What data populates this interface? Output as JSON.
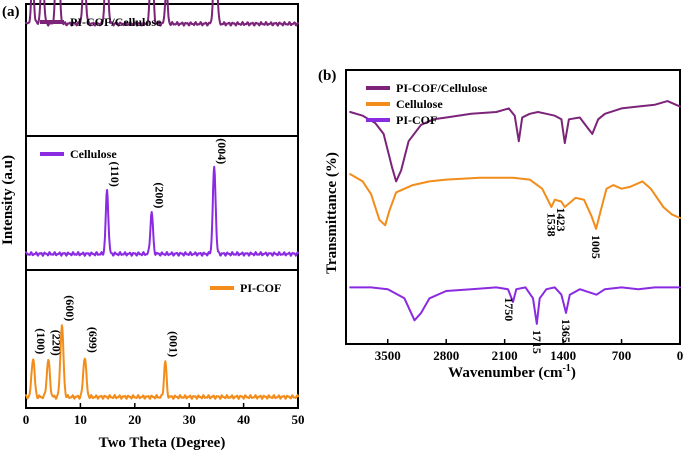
{
  "chart_data": [
    {
      "type": "line",
      "panel_label": "(a)",
      "xlabel": "Two Theta (Degree)",
      "ylabel": "Intensity (a.u)",
      "xlim": [
        0,
        50
      ],
      "x_ticks": [
        0,
        10,
        20,
        30,
        40,
        50
      ],
      "y_ticks_shown": false,
      "grid": false,
      "layout": "three stacked panels sharing x axis",
      "series": [
        {
          "name": "PI-COF/Cellulose",
          "color": "#7b2479",
          "legend": "top-left",
          "baseline": 0.85,
          "peaks": [
            {
              "x": 1.2,
              "height": 0.32,
              "width": 0.25
            },
            {
              "x": 3.0,
              "height": 0.4,
              "width": 0.28
            },
            {
              "x": 5.8,
              "height": 0.8,
              "width": 0.3
            },
            {
              "x": 10.7,
              "height": 0.39,
              "width": 0.28
            },
            {
              "x": 14.8,
              "height": 0.62,
              "width": 0.26
            },
            {
              "x": 23.1,
              "height": 0.62,
              "width": 0.26
            },
            {
              "x": 25.8,
              "height": 0.28,
              "width": 0.22
            },
            {
              "x": 34.8,
              "height": 0.8,
              "width": 0.28
            }
          ],
          "annotations": []
        },
        {
          "name": "Cellulose",
          "color": "#8a2be2",
          "legend": "top-left",
          "baseline": 0.12,
          "peaks": [
            {
              "x": 14.9,
              "height": 0.47,
              "width": 0.24
            },
            {
              "x": 23.1,
              "height": 0.31,
              "width": 0.24
            },
            {
              "x": 34.6,
              "height": 0.64,
              "width": 0.26
            }
          ],
          "annotations": [
            {
              "x": 14.9,
              "text": "(110)"
            },
            {
              "x": 23.1,
              "text": "(200)"
            },
            {
              "x": 34.6,
              "text": "(004)"
            }
          ]
        },
        {
          "name": "PI-COF",
          "color": "#f28c1a",
          "legend": "top-right",
          "baseline": 0.08,
          "peaks": [
            {
              "x": 1.3,
              "height": 0.28,
              "width": 0.28
            },
            {
              "x": 4.1,
              "height": 0.27,
              "width": 0.28
            },
            {
              "x": 6.6,
              "height": 0.52,
              "width": 0.28
            },
            {
              "x": 10.8,
              "height": 0.29,
              "width": 0.28
            },
            {
              "x": 25.6,
              "height": 0.26,
              "width": 0.22
            }
          ],
          "annotations": [
            {
              "x": 1.3,
              "text": "(100)"
            },
            {
              "x": 4.1,
              "text": "(220)"
            },
            {
              "x": 6.6,
              "text": "(600)"
            },
            {
              "x": 10.8,
              "text": "(699)"
            },
            {
              "x": 25.6,
              "text": "(001)"
            }
          ]
        }
      ]
    },
    {
      "type": "line",
      "panel_label": "(b)",
      "xlabel": "Wavenumber (cm⁻¹)",
      "ylabel": "Transmittance (%)",
      "xlim": [
        4000,
        0
      ],
      "x_reversed": true,
      "x_ticks": [
        3500,
        2800,
        2100,
        1400,
        700,
        0
      ],
      "y_ticks_shown": false,
      "grid": false,
      "legend": "top-left",
      "series": [
        {
          "name": "PI-COF/Cellulose",
          "color": "#7b2479",
          "points": [
            [
              3950,
              0.82
            ],
            [
              3800,
              0.8
            ],
            [
              3650,
              0.76
            ],
            [
              3550,
              0.7
            ],
            [
              3450,
              0.52
            ],
            [
              3400,
              0.44
            ],
            [
              3340,
              0.5
            ],
            [
              3250,
              0.66
            ],
            [
              3100,
              0.75
            ],
            [
              2950,
              0.78
            ],
            [
              2800,
              0.79
            ],
            [
              2500,
              0.81
            ],
            [
              2200,
              0.82
            ],
            [
              2050,
              0.84
            ],
            [
              1980,
              0.8
            ],
            [
              1930,
              0.66
            ],
            [
              1890,
              0.79
            ],
            [
              1800,
              0.81
            ],
            [
              1700,
              0.82
            ],
            [
              1600,
              0.81
            ],
            [
              1500,
              0.8
            ],
            [
              1420,
              0.78
            ],
            [
              1380,
              0.65
            ],
            [
              1330,
              0.78
            ],
            [
              1200,
              0.79
            ],
            [
              1100,
              0.73
            ],
            [
              1050,
              0.7
            ],
            [
              980,
              0.78
            ],
            [
              900,
              0.81
            ],
            [
              700,
              0.84
            ],
            [
              500,
              0.85
            ],
            [
              300,
              0.86
            ],
            [
              150,
              0.88
            ],
            [
              50,
              0.86
            ],
            [
              0,
              0.85
            ]
          ]
        },
        {
          "name": "Cellulose",
          "color": "#f28c1a",
          "points": [
            [
              3950,
              0.48
            ],
            [
              3800,
              0.44
            ],
            [
              3700,
              0.37
            ],
            [
              3600,
              0.23
            ],
            [
              3530,
              0.2
            ],
            [
              3480,
              0.28
            ],
            [
              3400,
              0.38
            ],
            [
              3200,
              0.42
            ],
            [
              3000,
              0.44
            ],
            [
              2800,
              0.45
            ],
            [
              2400,
              0.46
            ],
            [
              2000,
              0.46
            ],
            [
              1800,
              0.45
            ],
            [
              1650,
              0.4
            ],
            [
              1540,
              0.3
            ],
            [
              1500,
              0.34
            ],
            [
              1423,
              0.33
            ],
            [
              1380,
              0.3
            ],
            [
              1250,
              0.35
            ],
            [
              1150,
              0.34
            ],
            [
              1060,
              0.25
            ],
            [
              1005,
              0.18
            ],
            [
              950,
              0.28
            ],
            [
              880,
              0.4
            ],
            [
              800,
              0.42
            ],
            [
              700,
              0.4
            ],
            [
              600,
              0.41
            ],
            [
              450,
              0.44
            ],
            [
              350,
              0.4
            ],
            [
              200,
              0.3
            ],
            [
              100,
              0.26
            ],
            [
              0,
              0.24
            ]
          ]
        },
        {
          "name": "PI-COF",
          "color": "#8a2be2",
          "points": [
            [
              3950,
              -0.14
            ],
            [
              3700,
              -0.14
            ],
            [
              3500,
              -0.15
            ],
            [
              3300,
              -0.2
            ],
            [
              3180,
              -0.32
            ],
            [
              3100,
              -0.28
            ],
            [
              3000,
              -0.2
            ],
            [
              2800,
              -0.16
            ],
            [
              2500,
              -0.15
            ],
            [
              2200,
              -0.14
            ],
            [
              2060,
              -0.15
            ],
            [
              2000,
              -0.22
            ],
            [
              1960,
              -0.15
            ],
            [
              1850,
              -0.14
            ],
            [
              1760,
              -0.2
            ],
            [
              1715,
              -0.34
            ],
            [
              1680,
              -0.2
            ],
            [
              1600,
              -0.15
            ],
            [
              1500,
              -0.14
            ],
            [
              1420,
              -0.18
            ],
            [
              1365,
              -0.28
            ],
            [
              1320,
              -0.18
            ],
            [
              1200,
              -0.15
            ],
            [
              1000,
              -0.18
            ],
            [
              900,
              -0.15
            ],
            [
              700,
              -0.14
            ],
            [
              500,
              -0.15
            ],
            [
              300,
              -0.14
            ],
            [
              0,
              -0.14
            ]
          ]
        }
      ],
      "annotations": [
        {
          "x": 1538,
          "text": "1538",
          "series": "Cellulose"
        },
        {
          "x": 1423,
          "text": "1423",
          "series": "Cellulose"
        },
        {
          "x": 1005,
          "text": "1005",
          "series": "Cellulose"
        },
        {
          "x": 2050,
          "text": "1750",
          "series": "PI-COF"
        },
        {
          "x": 1715,
          "text": "1715",
          "series": "PI-COF"
        },
        {
          "x": 1365,
          "text": "1365",
          "series": "PI-COF"
        }
      ]
    }
  ]
}
